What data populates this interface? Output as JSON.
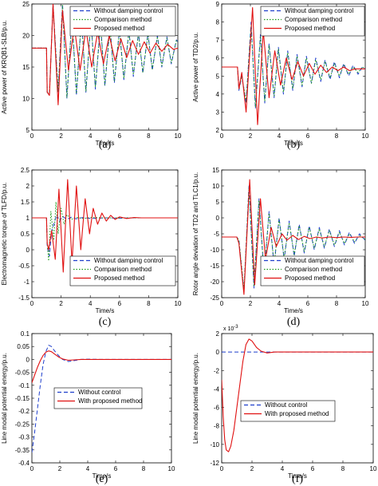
{
  "chart_data": [
    {
      "type": "line",
      "label": "(a)",
      "ylabel": "Active power of KRQB1-SLB/p.u.",
      "xlabel": "Time/s",
      "xlim": [
        0,
        10
      ],
      "ylim": [
        5,
        25
      ],
      "xticks": [
        0,
        2,
        4,
        6,
        8,
        10
      ],
      "yticks": [
        5,
        10,
        15,
        20,
        25
      ],
      "legend_position": "top-right",
      "series": [
        {
          "name": "Without damping control",
          "color": "#1f3fcc",
          "dash": "5,3",
          "x": [
            0,
            1,
            1.05,
            1.2,
            1.45,
            1.8,
            2.1,
            2.4,
            2.75,
            3.05,
            3.4,
            3.7,
            4.05,
            4.35,
            4.7,
            5.0,
            5.35,
            5.65,
            6.0,
            6.3,
            6.65,
            6.95,
            7.3,
            7.6,
            7.95,
            8.25,
            8.6,
            8.9,
            9.25,
            9.55,
            9.9,
            10
          ],
          "y": [
            18,
            18,
            11,
            10.5,
            25,
            11,
            25,
            10,
            23,
            10.5,
            23,
            11,
            22.5,
            11.5,
            22,
            12,
            21.5,
            12.5,
            21,
            13,
            20.8,
            13.5,
            20.5,
            14,
            20.3,
            14.5,
            20,
            15,
            19.8,
            15.5,
            19.3,
            19
          ]
        },
        {
          "name": "Comparison method",
          "color": "#1a9a1a",
          "dash": "1.5,2",
          "x": [
            0,
            1,
            1.05,
            1.2,
            1.45,
            1.8,
            2.1,
            2.4,
            2.75,
            3.05,
            3.4,
            3.7,
            4.05,
            4.35,
            4.7,
            5.0,
            5.35,
            5.65,
            6.0,
            6.3,
            6.65,
            6.95,
            7.3,
            7.6,
            7.95,
            8.25,
            8.6,
            8.9,
            9.25,
            9.55,
            9.9,
            10
          ],
          "y": [
            18,
            18,
            11,
            10.8,
            24.8,
            11.2,
            24.8,
            10.2,
            22.8,
            10.8,
            22.8,
            11.2,
            22.3,
            11.8,
            21.8,
            12.2,
            21.3,
            12.8,
            20.8,
            13.2,
            20.6,
            13.8,
            20.3,
            14.2,
            20.1,
            14.7,
            19.8,
            15.2,
            19.6,
            15.7,
            19.2,
            19
          ]
        },
        {
          "name": "Proposed method",
          "color": "#e01010",
          "dash": "",
          "x": [
            0,
            1,
            1.05,
            1.2,
            1.45,
            1.8,
            2.1,
            2.5,
            2.9,
            3.3,
            3.7,
            4.1,
            4.5,
            4.9,
            5.3,
            5.7,
            6.1,
            6.5,
            6.9,
            7.3,
            7.7,
            8.1,
            8.5,
            8.9,
            9.3,
            9.7,
            10
          ],
          "y": [
            18,
            18,
            11,
            10.5,
            25,
            9,
            24,
            14.5,
            21.5,
            14.5,
            21,
            15,
            20.5,
            15.5,
            20,
            16,
            19.5,
            16.5,
            19.2,
            17,
            19,
            17.2,
            18.8,
            17.5,
            18.6,
            17.8,
            18
          ]
        }
      ]
    },
    {
      "type": "line",
      "label": "(b)",
      "ylabel": "Active power of TD2/p.u.",
      "xlabel": "Time/s",
      "xlim": [
        0,
        10
      ],
      "ylim": [
        2,
        9
      ],
      "xticks": [
        0,
        2,
        4,
        6,
        8,
        10
      ],
      "yticks": [
        2,
        3,
        4,
        5,
        6,
        7,
        8,
        9
      ],
      "legend_position": "top-right",
      "series": [
        {
          "name": "Without damping control",
          "color": "#1f3fcc",
          "dash": "5,3",
          "x": [
            0,
            1.1,
            1.2,
            1.4,
            1.7,
            2.05,
            2.35,
            2.7,
            3.0,
            3.3,
            3.65,
            3.95,
            4.3,
            4.6,
            4.95,
            5.25,
            5.6,
            5.9,
            6.25,
            6.55,
            6.9,
            7.2,
            7.55,
            7.85,
            8.2,
            8.5,
            8.85,
            9.15,
            9.5,
            9.8,
            10
          ],
          "y": [
            5.5,
            5.5,
            4.2,
            5.0,
            3.5,
            8.0,
            3.2,
            7.3,
            3.5,
            6.8,
            3.8,
            6.6,
            4.0,
            6.4,
            4.2,
            6.2,
            4.4,
            6.1,
            4.6,
            6.0,
            4.7,
            5.9,
            4.8,
            5.8,
            4.9,
            5.7,
            5.0,
            5.6,
            5.1,
            5.5,
            5.4
          ]
        },
        {
          "name": "Comparison method",
          "color": "#1a9a1a",
          "dash": "1.5,2",
          "x": [
            0,
            1.1,
            1.2,
            1.4,
            1.7,
            2.05,
            2.35,
            2.7,
            3.0,
            3.3,
            3.65,
            3.95,
            4.3,
            4.6,
            4.95,
            5.25,
            5.6,
            5.9,
            6.25,
            6.55,
            6.9,
            7.2,
            7.55,
            7.85,
            8.2,
            8.5,
            8.85,
            9.15,
            9.5,
            9.8,
            10
          ],
          "y": [
            5.5,
            5.5,
            4.3,
            5.0,
            3.6,
            7.8,
            3.3,
            7.2,
            3.6,
            6.7,
            3.9,
            6.5,
            4.1,
            6.3,
            4.3,
            6.1,
            4.5,
            6.0,
            4.6,
            5.9,
            4.8,
            5.8,
            4.9,
            5.7,
            5.0,
            5.6,
            5.1,
            5.5,
            5.2,
            5.5,
            5.4
          ]
        },
        {
          "name": "Proposed method",
          "color": "#e01010",
          "dash": "",
          "x": [
            0,
            1.1,
            1.2,
            1.4,
            1.7,
            2.15,
            2.5,
            2.9,
            3.3,
            3.7,
            4.1,
            4.5,
            4.9,
            5.3,
            5.7,
            6.1,
            6.5,
            6.9,
            7.3,
            7.7,
            8.1,
            8.5,
            8.9,
            9.3,
            9.7,
            10
          ],
          "y": [
            5.5,
            5.5,
            4.3,
            5.2,
            3.0,
            8.8,
            2.3,
            7.5,
            3.8,
            6.4,
            4.5,
            6.0,
            4.8,
            5.8,
            5.0,
            5.7,
            5.1,
            5.6,
            5.2,
            5.5,
            5.3,
            5.5,
            5.3,
            5.4,
            5.4,
            5.4
          ]
        }
      ]
    },
    {
      "type": "line",
      "label": "(c)",
      "ylabel": "Electromagnetic torque of TLFD/p.u.",
      "xlabel": "Time/s",
      "xlim": [
        0,
        10
      ],
      "ylim": [
        -1.5,
        2.5
      ],
      "xticks": [
        0,
        2,
        4,
        6,
        8,
        10
      ],
      "yticks": [
        -1.5,
        -1,
        -0.5,
        0,
        0.5,
        1,
        1.5,
        2,
        2.5
      ],
      "legend_position": "bottom-right",
      "series": [
        {
          "name": "Without damping control",
          "color": "#1f3fcc",
          "dash": "5,3",
          "x": [
            0,
            1,
            1.05,
            1.2,
            1.35,
            1.5,
            1.7,
            1.9,
            2.1,
            2.4,
            2.7,
            3.0,
            3.5,
            4.0,
            5.0,
            6.0,
            7.0,
            8.0,
            9.0,
            10
          ],
          "y": [
            1,
            1,
            0.1,
            -0.2,
            0.6,
            0.8,
            1.1,
            0.9,
            1.05,
            0.95,
            1.02,
            0.97,
            1.01,
            0.98,
            1.0,
            0.99,
            1.0,
            1.0,
            1.0,
            1.0
          ]
        },
        {
          "name": "Comparison method",
          "color": "#1a9a1a",
          "dash": "1.5,2",
          "x": [
            0,
            1,
            1.05,
            1.15,
            1.3,
            1.5,
            1.65,
            1.8,
            2.0,
            2.2,
            2.4,
            2.7,
            3.0,
            3.5,
            4.0,
            5.0,
            6.0,
            7.0,
            8.0,
            9.0,
            10
          ],
          "y": [
            1,
            1,
            0.2,
            -0.35,
            1.2,
            0.3,
            1.5,
            0.5,
            1.3,
            0.8,
            1.1,
            0.95,
            1.02,
            0.98,
            1.01,
            1.0,
            1.0,
            1.0,
            1.0,
            1.0,
            1.0
          ]
        },
        {
          "name": "Proposed method",
          "color": "#e01010",
          "dash": "",
          "x": [
            0,
            1,
            1.05,
            1.15,
            1.35,
            1.6,
            1.85,
            2.15,
            2.45,
            2.75,
            3.05,
            3.35,
            3.65,
            3.95,
            4.2,
            4.5,
            4.8,
            5.1,
            5.4,
            5.7,
            6.0,
            6.5,
            7.0,
            7.5,
            8.0,
            9.0,
            10
          ],
          "y": [
            1,
            1,
            0.2,
            0.0,
            0.6,
            -0.3,
            1.9,
            -0.7,
            2.2,
            -0.4,
            2.0,
            0.0,
            1.6,
            0.5,
            1.3,
            0.8,
            1.15,
            0.9,
            1.08,
            0.95,
            1.03,
            0.98,
            1.01,
            1.0,
            1.0,
            1.0,
            1.0
          ]
        }
      ]
    },
    {
      "type": "line",
      "label": "(d)",
      "ylabel": "Rotor angle deviation of TD2 and TLC1/p.u.",
      "xlabel": "Time/s",
      "xlim": [
        0,
        10
      ],
      "ylim": [
        -25,
        15
      ],
      "xticks": [
        0,
        2,
        4,
        6,
        8,
        10
      ],
      "yticks": [
        -25,
        -20,
        -15,
        -10,
        -5,
        0,
        5,
        10,
        15
      ],
      "legend_position": "bottom-right",
      "series": [
        {
          "name": "Without damping control",
          "color": "#1f3fcc",
          "dash": "5,3",
          "x": [
            0,
            1.05,
            1.2,
            1.55,
            1.9,
            2.25,
            2.6,
            2.95,
            3.3,
            3.65,
            4.0,
            4.35,
            4.7,
            5.05,
            5.4,
            5.75,
            6.1,
            6.45,
            6.8,
            7.15,
            7.5,
            7.85,
            8.2,
            8.55,
            8.9,
            9.25,
            9.6,
            10
          ],
          "y": [
            -6,
            -6,
            -7,
            -23,
            10,
            -22,
            6,
            -18,
            2,
            -15,
            0,
            -13,
            -1,
            -12,
            -2,
            -11,
            -2.5,
            -10,
            -3,
            -9.5,
            -3.5,
            -9,
            -4,
            -8.5,
            -4.5,
            -8,
            -5,
            -7
          ]
        },
        {
          "name": "Comparison method",
          "color": "#1a9a1a",
          "dash": "1.5,2",
          "x": [
            0,
            1.05,
            1.2,
            1.55,
            1.9,
            2.25,
            2.6,
            2.95,
            3.3,
            3.65,
            4.0,
            4.35,
            4.7,
            5.05,
            5.4,
            5.75,
            6.1,
            6.45,
            6.8,
            7.15,
            7.5,
            7.85,
            8.2,
            8.55,
            8.9,
            9.25,
            9.6,
            10
          ],
          "y": [
            -6,
            -6,
            -7,
            -22.5,
            9.5,
            -21.5,
            5.5,
            -17.5,
            1.5,
            -14.5,
            -0.5,
            -12.5,
            -1.5,
            -11.5,
            -2.5,
            -10.5,
            -3,
            -9.5,
            -3.5,
            -9,
            -4,
            -8.5,
            -4.5,
            -8,
            -5,
            -7.5,
            -5.5,
            -6.8
          ]
        },
        {
          "name": "Proposed method",
          "color": "#e01010",
          "dash": "",
          "x": [
            0,
            1.05,
            1.2,
            1.55,
            1.95,
            2.3,
            2.7,
            3.05,
            3.45,
            3.8,
            4.2,
            4.55,
            4.95,
            5.35,
            5.75,
            6.15,
            6.6,
            7.0,
            7.5,
            8.0,
            8.5,
            9.0,
            9.5,
            10
          ],
          "y": [
            -6,
            -6,
            -8,
            -24,
            12,
            -21,
            6,
            -13,
            -3,
            -9,
            -5,
            -7,
            -5.5,
            -6.8,
            -5.8,
            -6.5,
            -6,
            -6.3,
            -6,
            -6.2,
            -6,
            -6.1,
            -6,
            -6
          ]
        }
      ]
    },
    {
      "type": "line",
      "label": "(e)",
      "ylabel": "Line modal potential energy/p.u.",
      "xlabel": "Time/s",
      "xlim": [
        0,
        10
      ],
      "ylim": [
        -0.4,
        0.1
      ],
      "xticks": [
        0,
        2,
        4,
        6,
        8,
        10
      ],
      "yticks": [
        -0.4,
        -0.35,
        -0.3,
        -0.25,
        -0.2,
        -0.15,
        -0.1,
        -0.05,
        0,
        0.05,
        0.1
      ],
      "legend_position": "bottom-center",
      "series": [
        {
          "name": "Without control",
          "color": "#1f3fcc",
          "dash": "5,3",
          "x": [
            0,
            0.2,
            0.4,
            0.6,
            0.8,
            1.0,
            1.2,
            1.4,
            1.6,
            1.9,
            2.2,
            2.6,
            3.0,
            3.5,
            4.0,
            5.0,
            6.0,
            8.0,
            10
          ],
          "y": [
            -0.36,
            -0.28,
            -0.19,
            -0.1,
            -0.02,
            0.03,
            0.055,
            0.05,
            0.035,
            0.015,
            0.0,
            -0.008,
            -0.005,
            0.0,
            0.001,
            0.0,
            0.0,
            0.0,
            0.0
          ]
        },
        {
          "name": "With proposed method",
          "color": "#e01010",
          "dash": "",
          "x": [
            0,
            0.2,
            0.4,
            0.6,
            0.8,
            1.0,
            1.2,
            1.4,
            1.6,
            1.9,
            2.2,
            2.6,
            3.0,
            3.5,
            4.0,
            5.0,
            6.0,
            8.0,
            10
          ],
          "y": [
            -0.09,
            -0.06,
            -0.03,
            -0.005,
            0.015,
            0.028,
            0.033,
            0.03,
            0.022,
            0.01,
            0.002,
            -0.003,
            -0.002,
            0.0,
            0.0,
            0.0,
            0.0,
            0.0,
            0.0
          ]
        }
      ]
    },
    {
      "type": "line",
      "label": "(f)",
      "ylabel": "Line modal potential energy/p.u.",
      "xlabel": "Time/s",
      "yscale_label": "x 10",
      "yscale_exp": "-3",
      "xlim": [
        0,
        10
      ],
      "ylim": [
        -12,
        2
      ],
      "xticks": [
        0,
        2,
        4,
        6,
        8,
        10
      ],
      "yticks": [
        -12,
        -10,
        -8,
        -6,
        -4,
        -2,
        0,
        2
      ],
      "legend_position": "bottom-right",
      "series": [
        {
          "name": "Without control",
          "color": "#1f3fcc",
          "dash": "5,3",
          "x": [
            0,
            10
          ],
          "y": [
            0,
            0
          ]
        },
        {
          "name": "With proposed method",
          "color": "#e01010",
          "dash": "",
          "x": [
            0,
            0.1,
            0.2,
            0.3,
            0.45,
            0.6,
            0.8,
            1.0,
            1.2,
            1.4,
            1.6,
            1.8,
            2.0,
            2.3,
            2.6,
            3.0,
            3.5,
            4.0,
            5.0,
            6.0,
            8.0,
            10
          ],
          "y": [
            -3,
            -7,
            -9.5,
            -10.6,
            -10.8,
            -10.2,
            -8.5,
            -6,
            -3.5,
            -1,
            0.8,
            1.4,
            1.2,
            0.5,
            0.1,
            -0.1,
            0.0,
            0.0,
            0.0,
            0.0,
            0.0,
            0.0
          ]
        }
      ]
    }
  ]
}
